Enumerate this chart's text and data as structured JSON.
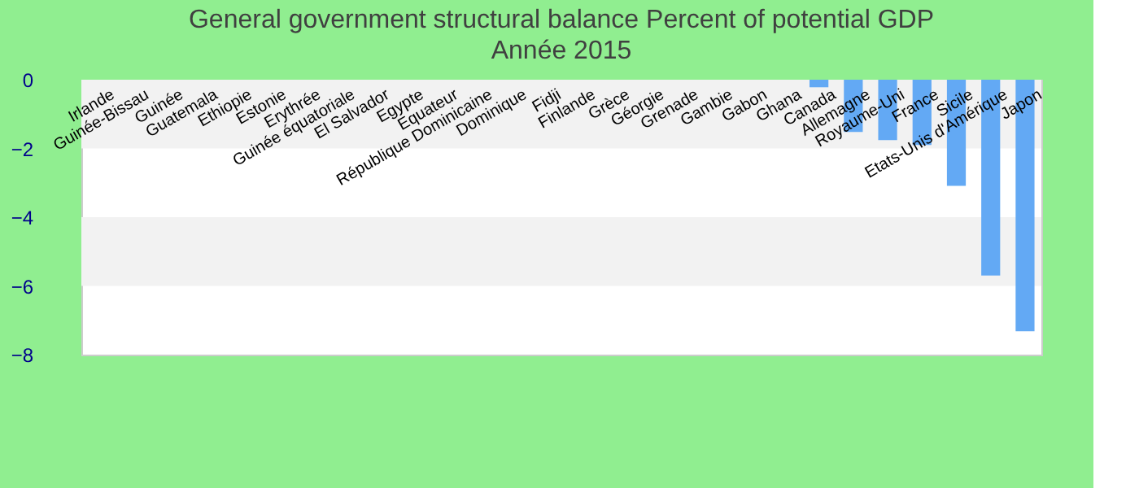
{
  "chart_data": {
    "type": "bar",
    "title": "General government structural balance  Percent of potential GDP",
    "subtitle": "Année 2015",
    "categories": [
      "Irlande",
      "Guinée-Bissau",
      "Guinée",
      "Guatemala",
      "Ethiopie",
      "Estonie",
      "Erythrée",
      "Guinée équatoriale",
      "El Salvador",
      "Egypte",
      "Equateur",
      "République Dominicaine",
      "Dominique",
      "Fidji",
      "Finlande",
      "Grèce",
      "Géorgie",
      "Grenade",
      "Gambie",
      "Gabon",
      "Ghana",
      "Canada",
      "Allemagne",
      "Royaume-Uni",
      "France",
      "Sicile",
      "Etats-Unis d'Amérique",
      "Japon"
    ],
    "values": [
      null,
      null,
      null,
      null,
      null,
      null,
      null,
      null,
      null,
      null,
      null,
      null,
      null,
      null,
      null,
      null,
      null,
      null,
      null,
      null,
      null,
      -0.22,
      -1.52,
      -1.76,
      -1.9,
      -3.09,
      -5.7,
      -7.32
    ],
    "color": "#63a9f4",
    "ylim": [
      -8,
      0
    ],
    "yticks": [
      0,
      -2,
      -4,
      -6,
      -8
    ],
    "grid": false,
    "bands": [
      {
        "axis": "y",
        "from": 0,
        "to": -2,
        "color": "#f2f2f2"
      },
      {
        "axis": "y",
        "from": -4,
        "to": -6,
        "color": "#f2f2f2"
      }
    ]
  }
}
